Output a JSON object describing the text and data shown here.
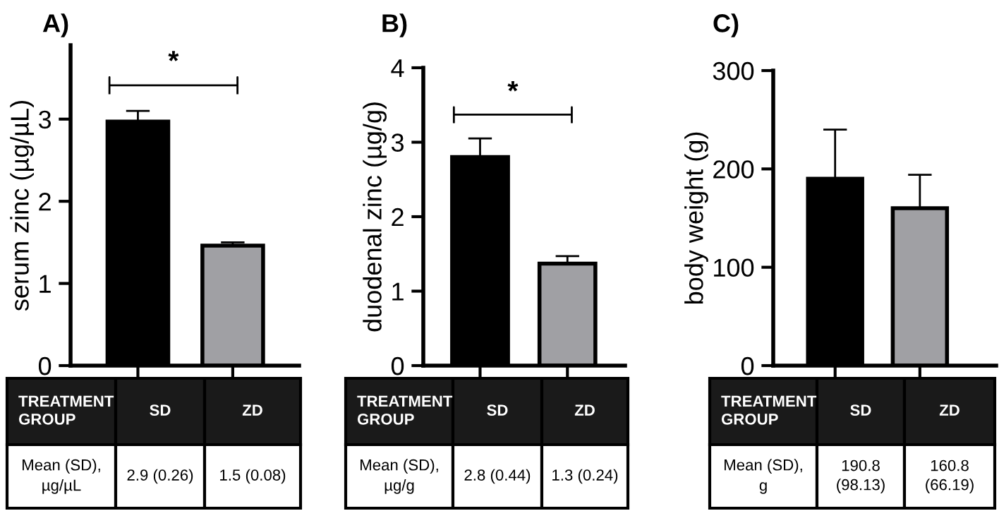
{
  "chart_data": [
    {
      "type": "bar",
      "title": "A)",
      "ylabel": "serum zinc (µg/µL)",
      "categories": [
        "SD",
        "ZD"
      ],
      "values": [
        2.97,
        1.46
      ],
      "colors": [
        "#000000",
        "#a0a0a4"
      ],
      "errors": [
        [
          2.97,
          3.1
        ],
        [
          1.46,
          1.5
        ]
      ],
      "ylim": [
        0,
        3.9
      ],
      "yticks": [
        0,
        1,
        2,
        3
      ],
      "tick_labels": "y",
      "annotations": [
        "TREATMENT GROUP",
        "Mean (SD), µg/µL",
        "2.9 (0.26)",
        "1.5 (0.08)",
        "*"
      ]
    },
    {
      "type": "bar",
      "title": "B)",
      "ylabel": "duodenal zinc (µg/g)",
      "categories": [
        "SD",
        "ZD"
      ],
      "values": [
        2.8,
        1.37
      ],
      "colors": [
        "#000000",
        "#a0a0a4"
      ],
      "errors": [
        [
          2.8,
          3.05
        ],
        [
          1.37,
          1.47
        ]
      ],
      "ylim": [
        0,
        4
      ],
      "yticks": [
        0,
        1,
        2,
        3,
        4
      ],
      "tick_labels": "y",
      "annotations": [
        "TREATMENT GROUP",
        "Mean (SD), µg/g",
        "2.8 (0.44)",
        "1.3 (0.24)",
        "*"
      ]
    },
    {
      "type": "bar",
      "title": "C)",
      "ylabel": "body weight (g)",
      "categories": [
        "SD",
        "ZD"
      ],
      "values": [
        190,
        160
      ],
      "colors": [
        "#000000",
        "#a0a0a4"
      ],
      "errors": [
        [
          190,
          240
        ],
        [
          160,
          194
        ]
      ],
      "ylim": [
        0,
        300
      ],
      "yticks": [
        0,
        100,
        200,
        300
      ],
      "tick_labels": "y",
      "annotations": [
        "TREATMENT GROUP",
        "Mean (SD), g",
        "190.8 (98.13)",
        "160.8 (66.19)"
      ]
    }
  ]
}
